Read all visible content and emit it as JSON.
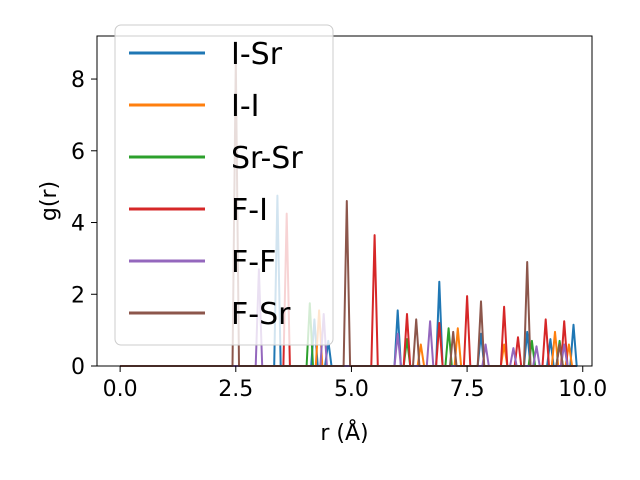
{
  "chart_data": {
    "type": "line",
    "xlabel": "r (Å)",
    "ylabel": "g(r)",
    "xlim": [
      -0.5,
      10.2
    ],
    "ylim": [
      0,
      9.2
    ],
    "xticks": [
      "0.0",
      "2.5",
      "5.0",
      "7.5",
      "10.0"
    ],
    "yticks": [
      "0",
      "2",
      "4",
      "6",
      "8"
    ],
    "grid": false,
    "legend_position": "top-left",
    "series": [
      {
        "name": "I-Sr",
        "color": "#1f77b4",
        "peaks": [
          [
            3.4,
            4.75
          ],
          [
            4.2,
            1.3
          ],
          [
            4.5,
            0.7
          ],
          [
            6.0,
            1.55
          ],
          [
            6.9,
            2.35
          ],
          [
            7.8,
            0.9
          ],
          [
            8.8,
            0.95
          ],
          [
            9.3,
            0.75
          ],
          [
            9.8,
            1.15
          ]
        ]
      },
      {
        "name": "I-I",
        "color": "#ff7f0e",
        "peaks": [
          [
            4.3,
            1.55
          ],
          [
            6.5,
            0.6
          ],
          [
            7.3,
            1.05
          ],
          [
            8.3,
            0.6
          ],
          [
            9.4,
            0.95
          ],
          [
            9.7,
            0.6
          ]
        ]
      },
      {
        "name": "Sr-Sr",
        "color": "#2ca02c",
        "peaks": [
          [
            4.1,
            1.75
          ],
          [
            6.2,
            0.75
          ],
          [
            7.1,
            1.05
          ],
          [
            8.9,
            0.7
          ],
          [
            9.5,
            0.7
          ]
        ]
      },
      {
        "name": "F-I",
        "color": "#d62728",
        "peaks": [
          [
            3.6,
            4.25
          ],
          [
            5.5,
            3.65
          ],
          [
            6.2,
            1.45
          ],
          [
            6.9,
            1.2
          ],
          [
            7.5,
            1.95
          ],
          [
            8.3,
            1.65
          ],
          [
            8.6,
            0.8
          ],
          [
            9.2,
            1.3
          ],
          [
            9.6,
            1.25
          ]
        ]
      },
      {
        "name": "F-F",
        "color": "#9467bd",
        "peaks": [
          [
            3.0,
            2.7
          ],
          [
            4.4,
            1.45
          ],
          [
            6.0,
            0.9
          ],
          [
            6.7,
            1.25
          ],
          [
            7.9,
            0.6
          ],
          [
            8.5,
            0.5
          ],
          [
            9.0,
            0.55
          ],
          [
            9.6,
            0.6
          ]
        ]
      },
      {
        "name": "F-Sr",
        "color": "#8c564b",
        "peaks": [
          [
            2.5,
            8.55
          ],
          [
            4.9,
            4.6
          ],
          [
            6.4,
            1.3
          ],
          [
            7.2,
            0.95
          ],
          [
            7.8,
            1.8
          ],
          [
            8.8,
            2.9
          ],
          [
            9.5,
            0.6
          ]
        ]
      }
    ]
  }
}
